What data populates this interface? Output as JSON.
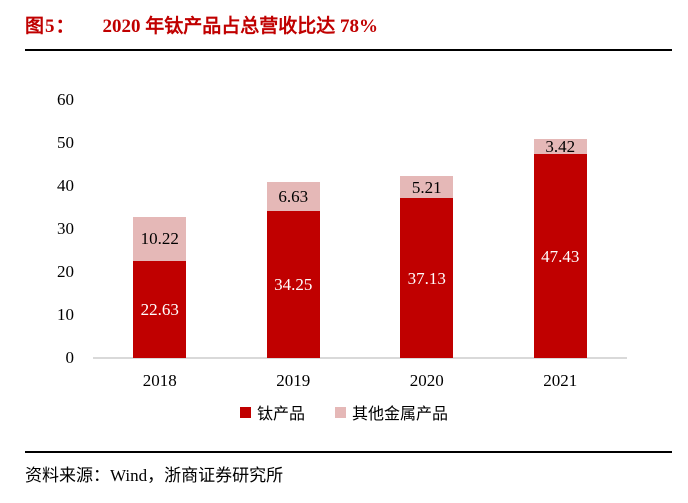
{
  "header": {
    "figure_label": "图5：",
    "title": "2020 年钛产品占总营收比达 78%"
  },
  "chart_data": {
    "type": "bar",
    "stacked": true,
    "title": "2020 年钛产品占总营收比达 78%",
    "xlabel": "",
    "ylabel": "",
    "categories": [
      "2018",
      "2019",
      "2020",
      "2021"
    ],
    "series": [
      {
        "name": "钛产品",
        "color": "#c00000",
        "label_color": "#ffffff",
        "values": [
          22.63,
          34.25,
          37.13,
          47.43
        ]
      },
      {
        "name": "其他金属产品",
        "color": "#e5b8b7",
        "label_color": "#000000",
        "values": [
          10.22,
          6.63,
          5.21,
          3.42
        ]
      }
    ],
    "yticks": [
      0,
      10,
      20,
      30,
      40,
      50,
      60
    ],
    "ylim": [
      0,
      60
    ],
    "grid": false,
    "legend_position": "bottom"
  },
  "footer": {
    "source": "资料来源：Wind，浙商证券研究所"
  },
  "colors": {
    "accent_red": "#c00000",
    "light_pink": "#e5b8b7",
    "axis_line": "#d9d9d9",
    "rule": "#000000",
    "title_text": "#c00000"
  }
}
